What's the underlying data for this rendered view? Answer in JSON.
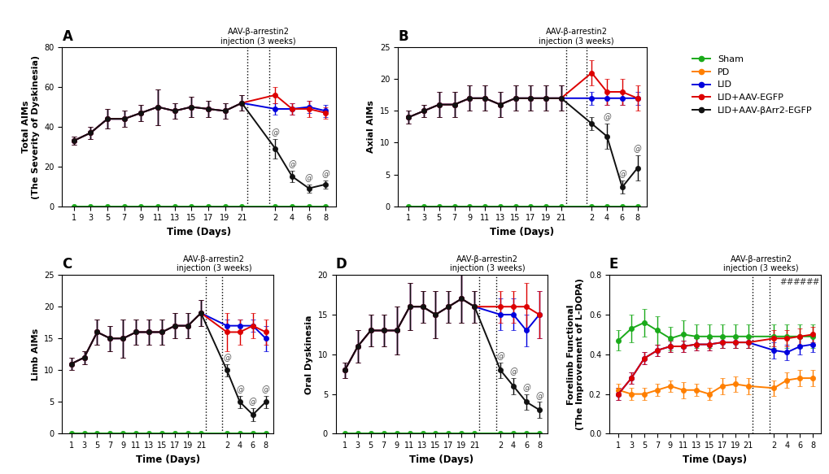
{
  "chart_data": [
    {
      "type": "line",
      "title": "A",
      "marker": "o",
      "legend": "upper right",
      "x_label": "Time (Days)",
      "y_label": "Total AIMs\n(The Severity of Dyskinesia)",
      "categories": [
        "1",
        "3",
        "5",
        "7",
        "9",
        "11",
        "13",
        "15",
        "17",
        "19",
        "21",
        null,
        "2",
        "4",
        "6",
        "8"
      ],
      "ylim": [
        0,
        80
      ],
      "yticks": [
        0,
        20,
        40,
        60,
        80
      ],
      "series": [
        {
          "name": "Sham",
          "color": "#1aaa1a",
          "values": [
            0,
            0,
            0,
            0,
            0,
            0,
            0,
            0,
            0,
            0,
            0,
            null,
            0,
            0,
            0,
            0
          ],
          "errors": [
            0,
            0,
            0,
            0,
            0,
            0,
            0,
            0,
            0,
            0,
            0,
            null,
            0,
            0,
            0,
            0
          ]
        },
        {
          "name": "LID",
          "color": "#0000dd",
          "values": [
            33,
            37,
            44,
            44,
            47,
            50,
            48,
            50,
            49,
            48,
            52,
            null,
            49,
            49,
            50,
            48
          ],
          "errors": [
            2,
            3,
            5,
            4,
            4,
            9,
            4,
            5,
            4,
            4,
            4,
            null,
            3,
            3,
            3,
            3
          ]
        },
        {
          "name": "LID+AAV-EGFP",
          "color": "#dd0000",
          "values": [
            33,
            37,
            44,
            44,
            47,
            50,
            48,
            50,
            49,
            48,
            52,
            null,
            56,
            49,
            49,
            47
          ],
          "errors": [
            2,
            3,
            5,
            4,
            4,
            9,
            4,
            5,
            4,
            4,
            4,
            null,
            4,
            3,
            4,
            3
          ]
        },
        {
          "name": "LID+AAV-βArr2-EGFP",
          "color": "#111111",
          "values": [
            33,
            37,
            44,
            44,
            47,
            50,
            48,
            50,
            49,
            48,
            52,
            null,
            29,
            15,
            9,
            11
          ],
          "errors": [
            2,
            3,
            5,
            4,
            4,
            9,
            4,
            5,
            4,
            4,
            4,
            null,
            5,
            3,
            2,
            2
          ]
        }
      ],
      "annotations": [
        {
          "text": "AAV-β-arrestin2\ninjection (3 weeks)",
          "x": null
        },
        {
          "text": "@",
          "x": "2",
          "series": "LID+AAV-βArr2-EGFP"
        },
        {
          "text": "@",
          "x": "4",
          "series": "LID+AAV-βArr2-EGFP"
        },
        {
          "text": "@",
          "x": "6",
          "series": "LID+AAV-βArr2-EGFP"
        },
        {
          "text": "@",
          "x": "8",
          "series": "LID+AAV-βArr2-EGFP"
        }
      ]
    },
    {
      "type": "line",
      "title": "B",
      "marker": "o",
      "x_label": "Time (Days)",
      "y_label": "Axial AIMs",
      "categories": [
        "1",
        "3",
        "5",
        "7",
        "9",
        "11",
        "13",
        "15",
        "17",
        "19",
        "21",
        null,
        "2",
        "4",
        "6",
        "8"
      ],
      "ylim": [
        0,
        25
      ],
      "yticks": [
        0,
        5,
        10,
        15,
        20,
        25
      ],
      "series": [
        {
          "name": "Sham",
          "color": "#1aaa1a",
          "values": [
            0,
            0,
            0,
            0,
            0,
            0,
            0,
            0,
            0,
            0,
            0,
            null,
            0,
            0,
            0,
            0
          ],
          "errors": [
            0,
            0,
            0,
            0,
            0,
            0,
            0,
            0,
            0,
            0,
            0,
            null,
            0,
            0,
            0,
            0
          ]
        },
        {
          "name": "LID",
          "color": "#0000dd",
          "values": [
            14,
            15,
            16,
            16,
            17,
            17,
            16,
            17,
            17,
            17,
            17,
            null,
            17,
            17,
            17,
            17
          ],
          "errors": [
            1,
            1,
            2,
            2,
            2,
            2,
            2,
            2,
            2,
            2,
            2,
            null,
            1,
            1,
            1,
            1
          ]
        },
        {
          "name": "LID+AAV-EGFP",
          "color": "#dd0000",
          "values": [
            14,
            15,
            16,
            16,
            17,
            17,
            16,
            17,
            17,
            17,
            17,
            null,
            21,
            18,
            18,
            17
          ],
          "errors": [
            1,
            1,
            2,
            2,
            2,
            2,
            2,
            2,
            2,
            2,
            2,
            null,
            2,
            2,
            2,
            2
          ]
        },
        {
          "name": "LID+AAV-βArr2-EGFP",
          "color": "#111111",
          "values": [
            14,
            15,
            16,
            16,
            17,
            17,
            16,
            17,
            17,
            17,
            17,
            null,
            13,
            11,
            3,
            6
          ],
          "errors": [
            1,
            1,
            2,
            2,
            2,
            2,
            2,
            2,
            2,
            2,
            2,
            null,
            1,
            2,
            1,
            2
          ]
        }
      ],
      "annotations": [
        {
          "text": "AAV-β-arrestin2\ninjection (3 weeks)",
          "x": null
        },
        {
          "text": "@",
          "x": "4",
          "series": "LID+AAV-βArr2-EGFP"
        },
        {
          "text": "@",
          "x": "6",
          "series": "LID+AAV-βArr2-EGFP"
        },
        {
          "text": "@",
          "x": "8",
          "series": "LID+AAV-βArr2-EGFP"
        }
      ]
    },
    {
      "type": "line",
      "title": "C",
      "marker": "o",
      "x_label": "Time (Days)",
      "y_label": "Limb AIMs",
      "categories": [
        "1",
        "3",
        "5",
        "7",
        "9",
        "11",
        "13",
        "15",
        "17",
        "19",
        "21",
        null,
        "2",
        "4",
        "6",
        "8"
      ],
      "ylim": [
        0,
        25
      ],
      "yticks": [
        0,
        5,
        10,
        15,
        20,
        25
      ],
      "series": [
        {
          "name": "Sham",
          "color": "#1aaa1a",
          "values": [
            0,
            0,
            0,
            0,
            0,
            0,
            0,
            0,
            0,
            0,
            0,
            null,
            0,
            0,
            0,
            0
          ],
          "errors": [
            0,
            0,
            0,
            0,
            0,
            0,
            0,
            0,
            0,
            0,
            0,
            null,
            0,
            0,
            0,
            0
          ]
        },
        {
          "name": "LID",
          "color": "#0000dd",
          "values": [
            11,
            12,
            16,
            15,
            15,
            16,
            16,
            16,
            17,
            17,
            19,
            null,
            17,
            17,
            17,
            15
          ],
          "errors": [
            1,
            1,
            2,
            2,
            3,
            2,
            2,
            2,
            2,
            2,
            2,
            null,
            1,
            1,
            1,
            2
          ]
        },
        {
          "name": "LID+AAV-EGFP",
          "color": "#dd0000",
          "values": [
            11,
            12,
            16,
            15,
            15,
            16,
            16,
            16,
            17,
            17,
            19,
            null,
            16,
            16,
            17,
            16
          ],
          "errors": [
            1,
            1,
            2,
            2,
            3,
            2,
            2,
            2,
            2,
            2,
            2,
            null,
            3,
            2,
            2,
            2
          ]
        },
        {
          "name": "LID+AAV-βArr2-EGFP",
          "color": "#111111",
          "values": [
            11,
            12,
            16,
            15,
            15,
            16,
            16,
            16,
            17,
            17,
            19,
            null,
            10,
            5,
            3,
            5
          ],
          "errors": [
            1,
            1,
            2,
            2,
            3,
            2,
            2,
            2,
            2,
            2,
            2,
            null,
            1,
            1,
            1,
            1
          ]
        }
      ],
      "annotations": [
        {
          "text": "AAV-β-arrestin2\ninjection (3 weeks)",
          "x": null
        },
        {
          "text": "@",
          "x": "2",
          "series": "LID+AAV-βArr2-EGFP"
        },
        {
          "text": "@",
          "x": "4",
          "series": "LID+AAV-βArr2-EGFP"
        },
        {
          "text": "@",
          "x": "6",
          "series": "LID+AAV-βArr2-EGFP"
        },
        {
          "text": "@",
          "x": "8",
          "series": "LID+AAV-βArr2-EGFP"
        }
      ]
    },
    {
      "type": "line",
      "title": "D",
      "marker": "o",
      "x_label": "Time (Days)",
      "y_label": "Oral Dyskinesia",
      "categories": [
        "1",
        "3",
        "5",
        "7",
        "9",
        "11",
        "13",
        "15",
        "17",
        "19",
        "21",
        null,
        "2",
        "4",
        "6",
        "8"
      ],
      "ylim": [
        0,
        20
      ],
      "yticks": [
        0,
        5,
        10,
        15,
        20
      ],
      "series": [
        {
          "name": "Sham",
          "color": "#1aaa1a",
          "values": [
            0,
            0,
            0,
            0,
            0,
            0,
            0,
            0,
            0,
            0,
            0,
            null,
            0,
            0,
            0,
            0
          ],
          "errors": [
            0,
            0,
            0,
            0,
            0,
            0,
            0,
            0,
            0,
            0,
            0,
            null,
            0,
            0,
            0,
            0
          ]
        },
        {
          "name": "LID",
          "color": "#0000dd",
          "values": [
            8,
            11,
            13,
            13,
            13,
            16,
            16,
            15,
            16,
            17,
            16,
            null,
            15,
            15,
            13,
            15
          ],
          "errors": [
            1,
            2,
            2,
            2,
            3,
            3,
            2,
            3,
            2,
            3,
            2,
            null,
            2,
            2,
            2,
            3
          ]
        },
        {
          "name": "LID+AAV-EGFP",
          "color": "#dd0000",
          "values": [
            8,
            11,
            13,
            13,
            13,
            16,
            16,
            15,
            16,
            17,
            16,
            null,
            16,
            16,
            16,
            15
          ],
          "errors": [
            1,
            2,
            2,
            2,
            3,
            3,
            2,
            3,
            2,
            3,
            2,
            null,
            2,
            2,
            3,
            3
          ]
        },
        {
          "name": "LID+AAV-βArr2-EGFP",
          "color": "#111111",
          "values": [
            8,
            11,
            13,
            13,
            13,
            16,
            16,
            15,
            16,
            17,
            16,
            null,
            8,
            6,
            4,
            3
          ],
          "errors": [
            1,
            2,
            2,
            2,
            3,
            3,
            2,
            3,
            2,
            3,
            2,
            null,
            1,
            1,
            1,
            1
          ]
        }
      ],
      "annotations": [
        {
          "text": "AAV-β-arrestin2\ninjection (3 weeks)",
          "x": null
        },
        {
          "text": "@",
          "x": "2",
          "series": "LID+AAV-βArr2-EGFP"
        },
        {
          "text": "@",
          "x": "4",
          "series": "LID+AAV-βArr2-EGFP"
        },
        {
          "text": "@",
          "x": "6",
          "series": "LID+AAV-βArr2-EGFP"
        },
        {
          "text": "@",
          "x": "8",
          "series": "LID+AAV-βArr2-EGFP"
        }
      ]
    },
    {
      "type": "line",
      "title": "E",
      "marker": "o",
      "x_label": "Time (Days)",
      "y_label": "Forelimb Functional\n(The Improvement of L-DOPA)",
      "categories": [
        "1",
        "3",
        "5",
        "7",
        "9",
        "11",
        "13",
        "15",
        "17",
        "19",
        "21",
        null,
        "2",
        "4",
        "6",
        "8"
      ],
      "ylim": [
        0.0,
        0.8
      ],
      "yticks": [
        0.0,
        0.2,
        0.4,
        0.6,
        0.8
      ],
      "series": [
        {
          "name": "Sham",
          "color": "#1aaa1a",
          "values": [
            0.47,
            0.53,
            0.56,
            0.52,
            0.48,
            0.5,
            0.49,
            0.49,
            0.49,
            0.49,
            0.49,
            null,
            0.49,
            0.49,
            0.49,
            0.49
          ],
          "errors": [
            0.05,
            0.07,
            0.07,
            0.07,
            0.06,
            0.07,
            0.06,
            0.06,
            0.06,
            0.06,
            0.06,
            null,
            0.06,
            0.06,
            0.06,
            0.06
          ]
        },
        {
          "name": "PD",
          "color": "#ff7f00",
          "values": [
            0.22,
            0.2,
            0.2,
            0.22,
            0.24,
            0.22,
            0.22,
            0.2,
            0.24,
            0.25,
            0.24,
            null,
            0.23,
            0.27,
            0.28,
            0.28
          ],
          "errors": [
            0.03,
            0.03,
            0.03,
            0.03,
            0.03,
            0.04,
            0.03,
            0.03,
            0.04,
            0.04,
            0.04,
            null,
            0.04,
            0.04,
            0.04,
            0.04
          ]
        },
        {
          "name": "LID",
          "color": "#0000dd",
          "values": [
            0.2,
            0.28,
            0.38,
            0.42,
            0.44,
            0.44,
            0.45,
            0.45,
            0.46,
            0.46,
            0.46,
            null,
            0.42,
            0.41,
            0.44,
            0.45
          ],
          "errors": [
            0.03,
            0.03,
            0.03,
            0.03,
            0.03,
            0.03,
            0.03,
            0.03,
            0.03,
            0.03,
            0.03,
            null,
            0.04,
            0.04,
            0.04,
            0.04
          ]
        },
        {
          "name": "LID+AAV-EGFP",
          "color": "#dd0000",
          "values": [
            0.2,
            0.28,
            0.38,
            0.42,
            0.44,
            0.44,
            0.45,
            0.45,
            0.46,
            0.46,
            0.46,
            null,
            0.48,
            0.48,
            0.49,
            0.5
          ],
          "errors": [
            0.03,
            0.03,
            0.03,
            0.03,
            0.03,
            0.03,
            0.03,
            0.03,
            0.03,
            0.03,
            0.03,
            null,
            0.04,
            0.04,
            0.04,
            0.04
          ]
        }
      ],
      "annotations": [
        {
          "text": "AAV-β-arrestin2\ninjection (3 weeks)",
          "x": null
        },
        {
          "text": "##",
          "x": "4"
        },
        {
          "text": "##",
          "x": "6"
        },
        {
          "text": "##",
          "x": "8"
        }
      ]
    }
  ]
}
